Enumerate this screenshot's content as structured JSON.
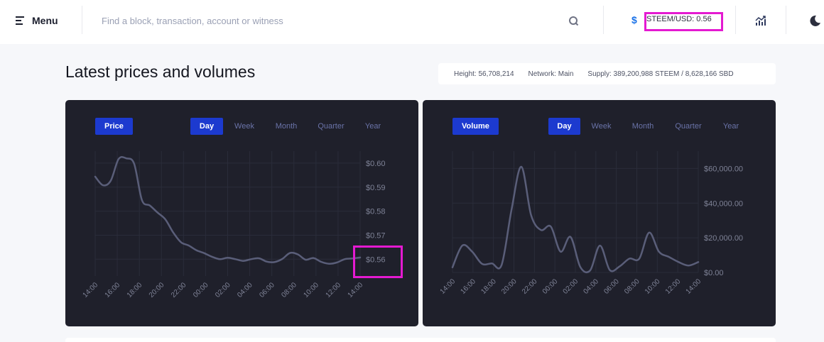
{
  "header": {
    "menu_label": "Menu",
    "search_placeholder": "Find a block, transaction, account or witness",
    "currency_symbol": "$",
    "price_ticker": "STEEM/USD: 0.56"
  },
  "page": {
    "title": "Latest prices and volumes",
    "stats": {
      "height": "Height: 56,708,214",
      "network": "Network: Main",
      "supply": "Supply: 389,200,988 STEEM / 8,628,166 SBD"
    }
  },
  "range_tabs": [
    "Day",
    "Week",
    "Month",
    "Quarter",
    "Year"
  ],
  "price_chart": {
    "metric_label": "Price",
    "active_range": "Day"
  },
  "volume_chart": {
    "metric_label": "Volume",
    "active_range": "Day"
  },
  "colors": {
    "card_bg": "#1f202b",
    "accent": "#1c3acf",
    "line": "#5a5e79",
    "highlight": "#e41ad1"
  },
  "chart_data": [
    {
      "type": "line",
      "series": [
        {
          "values": [
            0.5944,
            0.5908,
            0.5927,
            0.6017,
            0.602,
            0.5997,
            0.5846,
            0.5824,
            0.5794,
            0.5766,
            0.5712,
            0.5671,
            0.5657,
            0.5637,
            0.5625,
            0.561,
            0.56,
            0.5606,
            0.56,
            0.5593,
            0.56,
            0.5604,
            0.559,
            0.5588,
            0.5601,
            0.5626,
            0.562,
            0.5598,
            0.5605,
            0.5589,
            0.5581,
            0.5586,
            0.56,
            0.5603,
            0.5607
          ]
        }
      ],
      "x_tick_labels": [
        "14:00",
        "16:00",
        "18:00",
        "20:00",
        "22:00",
        "00:00",
        "02:00",
        "04:00",
        "06:00",
        "08:00",
        "10:00",
        "12:00",
        "14:00"
      ],
      "y_tick_values": [
        0.56,
        0.57,
        0.58,
        0.59,
        0.6
      ],
      "y_tick_labels": [
        "$0.56",
        "$0.57",
        "$0.58",
        "$0.59",
        "$0.60"
      ],
      "ylim": [
        0.553,
        0.605
      ],
      "grid": true,
      "y_axis_side": "right"
    },
    {
      "type": "line",
      "series": [
        {
          "values": [
            3000,
            15500,
            12000,
            5000,
            5200,
            4400,
            36000,
            61000,
            33000,
            24500,
            26500,
            12000,
            20500,
            3200,
            1200,
            15500,
            1400,
            3500,
            8000,
            8000,
            23000,
            12000,
            9000,
            6000,
            4000,
            6000
          ]
        }
      ],
      "x_tick_labels": [
        "14:00",
        "16:00",
        "18:00",
        "20:00",
        "22:00",
        "00:00",
        "02:00",
        "04:00",
        "06:00",
        "08:00",
        "10:00",
        "12:00",
        "14:00"
      ],
      "y_tick_values": [
        0,
        20000,
        40000,
        60000
      ],
      "y_tick_labels": [
        "$0.00",
        "$20,000.00",
        "$40,000.00",
        "$60,000.00"
      ],
      "ylim": [
        0,
        70000
      ],
      "grid": true,
      "y_axis_side": "right"
    }
  ]
}
